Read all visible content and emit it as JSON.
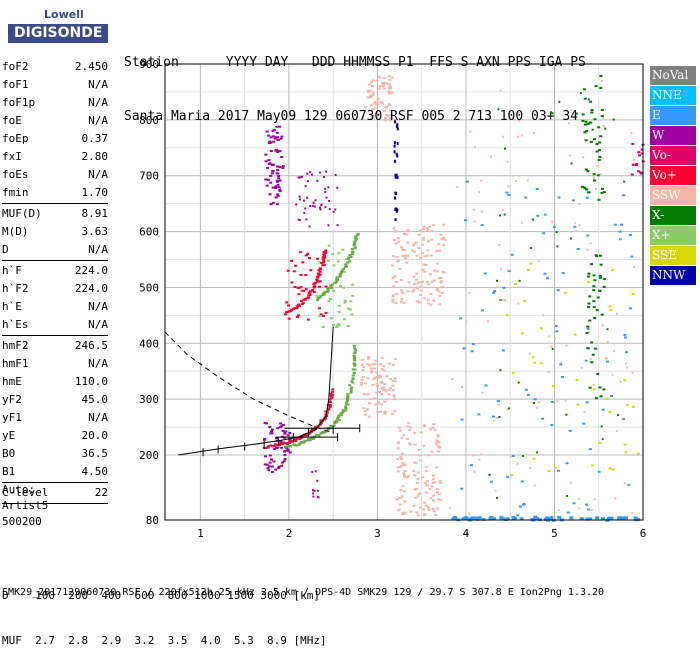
{
  "logo": {
    "line1": "Lowell",
    "line2": "DIGISONDE"
  },
  "header": {
    "labels": [
      "Station",
      "YYYY",
      "DAY",
      "DDD",
      "HHMMSS",
      "P1",
      "FFS",
      "S",
      "AXN",
      "PPS",
      "IGA",
      "PS"
    ],
    "values": [
      "Santa Maria",
      "2017",
      "May09",
      "129",
      "060730",
      "RSF",
      "005",
      "2",
      "713",
      "100",
      "03+",
      "34"
    ]
  },
  "params": [
    {
      "label": "foF2",
      "value": "2.450"
    },
    {
      "label": "foF1",
      "value": "N/A"
    },
    {
      "label": "foF1p",
      "value": "N/A"
    },
    {
      "label": "foE",
      "value": "N/A"
    },
    {
      "label": "foEp",
      "value": "0.37"
    },
    {
      "label": "fxI",
      "value": "2.80"
    },
    {
      "label": "foEs",
      "value": "N/A"
    },
    {
      "label": "fmin",
      "value": "1.70",
      "sep": true
    },
    {
      "label": "MUF(D)",
      "value": "8.91"
    },
    {
      "label": "M(D)",
      "value": "3.63"
    },
    {
      "label": "D",
      "value": "N/A",
      "sep": true
    },
    {
      "label": "h`F",
      "value": "224.0"
    },
    {
      "label": "h`F2",
      "value": "224.0"
    },
    {
      "label": "h`E",
      "value": "N/A"
    },
    {
      "label": "h`Es",
      "value": "N/A",
      "sep": true
    },
    {
      "label": "hmF2",
      "value": "246.5"
    },
    {
      "label": "hmF1",
      "value": "N/A"
    },
    {
      "label": "hmE",
      "value": "110.0"
    },
    {
      "label": "yF2",
      "value": "45.0"
    },
    {
      "label": "yF1",
      "value": "N/A"
    },
    {
      "label": "yE",
      "value": "20.0"
    },
    {
      "label": "B0",
      "value": "36.5"
    },
    {
      "label": "B1",
      "value": "4.50",
      "sep": true
    },
    {
      "label": "C-level",
      "value": "22",
      "sep": true
    }
  ],
  "auto": {
    "l1": "Auto:",
    "l2": "Artist5",
    "l3": "500200"
  },
  "legend": [
    {
      "label": "NoVal",
      "color": "#808080"
    },
    {
      "label": "NNE",
      "color": "#00bfff"
    },
    {
      "label": "E",
      "color": "#3399ff"
    },
    {
      "label": "W",
      "color": "#a000a0"
    },
    {
      "label": "Vo-",
      "color": "#e0006a"
    },
    {
      "label": "Vo+",
      "color": "#ff0033"
    },
    {
      "label": "SSW",
      "color": "#f5b4a8"
    },
    {
      "label": "X-",
      "color": "#007a00"
    },
    {
      "label": "X+",
      "color": "#88cc66"
    },
    {
      "label": "SSE",
      "color": "#d8d800"
    },
    {
      "label": "NNW",
      "color": "#0000aa"
    }
  ],
  "muf_table": {
    "d_label": "D",
    "d_values": [
      "100",
      "200",
      "400",
      "600",
      "800",
      "1000",
      "1500",
      "3000"
    ],
    "d_unit": "[km]",
    "muf_label": "MUF",
    "muf_values": [
      "2.7",
      "2.8",
      "2.9",
      "3.2",
      "3.5",
      "4.0",
      "5.3",
      "8.9"
    ],
    "muf_unit": "[MHz]"
  },
  "footer": "SMK29_2017129060730.RSF / 220fx512h 25 kHz 2.5 km / DPS-4D SMK29 129 / 29.7 S 307.8 E Ion2Png 1.3.20",
  "chart_data": {
    "type": "scatter",
    "x_ticks": [
      1,
      2,
      3,
      4,
      5,
      6
    ],
    "y_ticks": [
      80,
      200,
      300,
      400,
      500,
      600,
      700,
      800,
      900
    ],
    "xlim": [
      0.6,
      6.0
    ],
    "ylim": [
      80,
      900
    ],
    "grid": true,
    "clusters": [
      {
        "color": "#a000a0",
        "x0": 1.72,
        "x1": 1.92,
        "y0": 650,
        "y1": 790,
        "n": 70,
        "w": 3,
        "h": 2
      },
      {
        "color": "#a000a0",
        "x0": 2.05,
        "x1": 2.55,
        "y0": 610,
        "y1": 710,
        "n": 45,
        "w": 2,
        "h": 2
      },
      {
        "color": "#a000a0",
        "x0": 1.7,
        "x1": 2.0,
        "y0": 170,
        "y1": 260,
        "n": 60,
        "w": 3,
        "h": 2
      },
      {
        "color": "#a000a0",
        "x0": 2.25,
        "x1": 2.35,
        "y0": 120,
        "y1": 180,
        "n": 10,
        "w": 2,
        "h": 2
      },
      {
        "color": "#ff0033",
        "x0": 1.95,
        "x1": 2.42,
        "y0": 440,
        "y1": 570,
        "n": 40,
        "w": 3,
        "h": 2
      },
      {
        "color": "#88cc66",
        "x0": 2.3,
        "x1": 2.72,
        "y0": 430,
        "y1": 580,
        "n": 40,
        "w": 3,
        "h": 2
      },
      {
        "color": "#f5b4a8",
        "x0": 2.85,
        "x1": 3.15,
        "y0": 800,
        "y1": 880,
        "n": 70,
        "w": 3,
        "h": 2
      },
      {
        "color": "#f5b4a8",
        "x0": 3.15,
        "x1": 3.75,
        "y0": 470,
        "y1": 620,
        "n": 130,
        "w": 3,
        "h": 2
      },
      {
        "color": "#f5b4a8",
        "x0": 2.8,
        "x1": 3.2,
        "y0": 270,
        "y1": 380,
        "n": 90,
        "w": 3,
        "h": 2
      },
      {
        "color": "#f5b4a8",
        "x0": 3.2,
        "x1": 3.7,
        "y0": 90,
        "y1": 260,
        "n": 130,
        "w": 3,
        "h": 2
      },
      {
        "color": "#f5b4a8",
        "x0": 3.8,
        "x1": 5.9,
        "y0": 90,
        "y1": 880,
        "n": 110,
        "w": 2,
        "h": 2
      },
      {
        "color": "#0000aa",
        "x0": 3.18,
        "x1": 3.22,
        "y0": 620,
        "y1": 800,
        "n": 25,
        "w": 2,
        "h": 3
      },
      {
        "color": "#3399ff",
        "x0": 3.9,
        "x1": 5.9,
        "y0": 85,
        "y1": 700,
        "n": 90,
        "w": 3,
        "h": 2
      },
      {
        "color": "#3399ff",
        "x0": 3.8,
        "x1": 5.95,
        "y0": 82,
        "y1": 88,
        "n": 60,
        "w": 4,
        "h": 3
      },
      {
        "color": "#007a00",
        "x0": 5.3,
        "x1": 5.55,
        "y0": 650,
        "y1": 890,
        "n": 45,
        "w": 3,
        "h": 2
      },
      {
        "color": "#007a00",
        "x0": 5.35,
        "x1": 5.55,
        "y0": 300,
        "y1": 560,
        "n": 40,
        "w": 3,
        "h": 2
      },
      {
        "color": "#007a00",
        "x0": 4.25,
        "x1": 5.8,
        "y0": 120,
        "y1": 850,
        "n": 40,
        "w": 2,
        "h": 2
      },
      {
        "color": "#d8d800",
        "x0": 4.4,
        "x1": 5.95,
        "y0": 160,
        "y1": 560,
        "n": 40,
        "w": 3,
        "h": 2
      },
      {
        "color": "#e0006a",
        "x0": 5.85,
        "x1": 5.99,
        "y0": 700,
        "y1": 760,
        "n": 14,
        "w": 3,
        "h": 2
      }
    ],
    "traces": [
      {
        "color": "#e0103c",
        "w": 3,
        "h": 2,
        "points": [
          [
            1.7,
            215
          ],
          [
            1.85,
            220
          ],
          [
            2.0,
            225
          ],
          [
            2.1,
            232
          ],
          [
            2.2,
            240
          ],
          [
            2.3,
            252
          ],
          [
            2.38,
            268
          ],
          [
            2.44,
            290
          ],
          [
            2.47,
            320
          ]
        ]
      },
      {
        "color": "#66aa44",
        "w": 3,
        "h": 2,
        "points": [
          [
            1.95,
            215
          ],
          [
            2.1,
            222
          ],
          [
            2.25,
            232
          ],
          [
            2.4,
            245
          ],
          [
            2.52,
            262
          ],
          [
            2.62,
            285
          ],
          [
            2.68,
            320
          ],
          [
            2.72,
            360
          ],
          [
            2.74,
            400
          ]
        ]
      },
      {
        "color": "#ff0033",
        "w": 3,
        "h": 2,
        "points": [
          [
            1.95,
            455
          ],
          [
            2.1,
            470
          ],
          [
            2.22,
            490
          ],
          [
            2.3,
            515
          ],
          [
            2.36,
            545
          ],
          [
            2.4,
            570
          ]
        ]
      },
      {
        "color": "#66aa44",
        "w": 3,
        "h": 2,
        "points": [
          [
            2.3,
            480
          ],
          [
            2.45,
            500
          ],
          [
            2.55,
            520
          ],
          [
            2.65,
            545
          ],
          [
            2.72,
            575
          ],
          [
            2.76,
            600
          ]
        ]
      }
    ],
    "profile": {
      "points": [
        [
          0.75,
          200
        ],
        [
          1.2,
          211
        ],
        [
          1.6,
          219
        ],
        [
          1.9,
          226
        ],
        [
          2.1,
          232
        ],
        [
          2.3,
          245
        ],
        [
          2.42,
          270
        ],
        [
          2.45,
          300
        ],
        [
          2.47,
          350
        ],
        [
          2.5,
          430
        ]
      ]
    },
    "dashed_curve": {
      "points": [
        [
          0.6,
          420
        ],
        [
          0.85,
          380
        ],
        [
          1.2,
          340
        ],
        [
          1.6,
          300
        ],
        [
          2.0,
          270
        ],
        [
          2.3,
          250
        ],
        [
          2.5,
          240
        ]
      ]
    },
    "error_bars": [
      [
        1.03,
        205
      ],
      [
        1.2,
        210
      ],
      [
        1.5,
        215
      ],
      [
        1.72,
        218
      ],
      [
        1.88,
        224
      ],
      [
        2.05,
        232
      ],
      [
        2.22,
        240
      ],
      [
        2.5,
        245
      ]
    ]
  }
}
